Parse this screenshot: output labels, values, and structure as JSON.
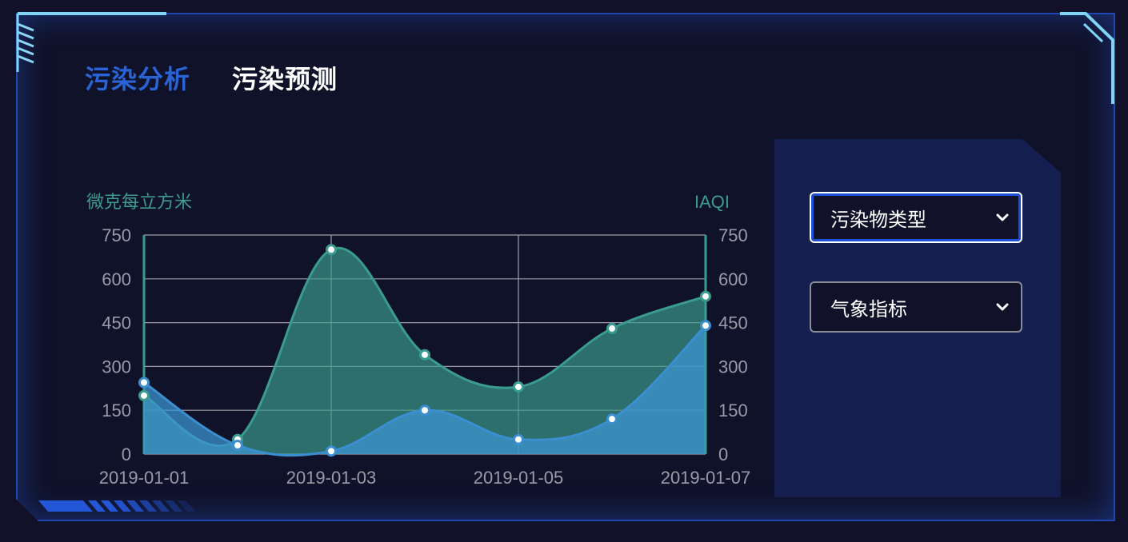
{
  "tabs": [
    {
      "label": "污染分析",
      "active": true
    },
    {
      "label": "污染预测",
      "active": false
    }
  ],
  "controls": {
    "pollutant_type": "污染物类型",
    "weather_indicator": "气象指标"
  },
  "colors": {
    "accent": "#2a63d6",
    "border": "#1f46b3",
    "series_green": "#3a9c8e",
    "series_blue": "#3b8fd0",
    "axis_label": "#3d9a8c",
    "tick": "#9a9aa8"
  },
  "chart_data": {
    "type": "area",
    "x": [
      "2019-01-01",
      "2019-01-02",
      "2019-01-03",
      "2019-01-04",
      "2019-01-05",
      "2019-01-06",
      "2019-01-07"
    ],
    "x_tick_labels": [
      "2019-01-01",
      "2019-01-03",
      "2019-01-05",
      "2019-01-07"
    ],
    "ylabel_left": "微克每立方米",
    "ylabel_right": "IAQI",
    "ylim": [
      0,
      750
    ],
    "yticks": [
      0,
      150,
      300,
      450,
      600,
      750
    ],
    "grid": true,
    "series": [
      {
        "values": [
          200,
          50,
          700,
          340,
          230,
          430,
          540
        ],
        "axis": "left"
      },
      {
        "values": [
          245,
          30,
          10,
          150,
          50,
          120,
          440
        ],
        "axis": "right"
      }
    ]
  }
}
